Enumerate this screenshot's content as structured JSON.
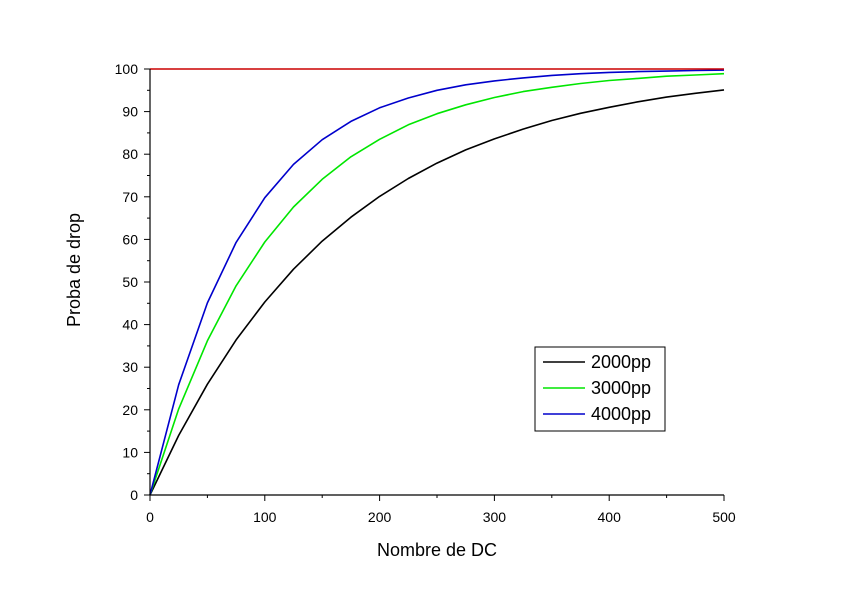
{
  "chart_data": {
    "type": "line",
    "title": "",
    "xlabel": "Nombre de DC",
    "ylabel": "Proba de drop",
    "xlim": [
      0,
      500
    ],
    "ylim": [
      0,
      100
    ],
    "x_ticks": [
      0,
      100,
      200,
      300,
      400,
      500
    ],
    "y_ticks": [
      0,
      10,
      20,
      30,
      40,
      50,
      60,
      70,
      80,
      90,
      100
    ],
    "grid": false,
    "legend_position": "lower-right",
    "x": [
      0,
      25,
      50,
      75,
      100,
      125,
      150,
      175,
      200,
      225,
      250,
      275,
      300,
      325,
      350,
      375,
      400,
      425,
      450,
      475,
      500
    ],
    "series": [
      {
        "name": "2000pp",
        "color": "#000000",
        "values": [
          0,
          14.0,
          26.0,
          36.4,
          45.3,
          53.0,
          59.6,
          65.2,
          70.1,
          74.3,
          77.9,
          81.0,
          83.6,
          85.9,
          87.9,
          89.6,
          91.0,
          92.3,
          93.4,
          94.3,
          95.1
        ]
      },
      {
        "name": "3000pp",
        "color": "#00e600",
        "values": [
          0,
          20.2,
          36.2,
          49.1,
          59.4,
          67.6,
          74.1,
          79.4,
          83.5,
          86.9,
          89.5,
          91.6,
          93.3,
          94.7,
          95.7,
          96.6,
          97.3,
          97.8,
          98.3,
          98.6,
          98.9
        ]
      },
      {
        "name": "4000pp",
        "color": "#0000cc",
        "values": [
          0,
          25.9,
          45.1,
          59.3,
          69.8,
          77.6,
          83.4,
          87.7,
          90.9,
          93.2,
          95.0,
          96.3,
          97.2,
          97.9,
          98.5,
          98.9,
          99.2,
          99.4,
          99.5,
          99.65,
          99.75
        ]
      },
      {
        "name": "",
        "color": "#cc0000",
        "values": [
          100,
          100,
          100,
          100,
          100,
          100,
          100,
          100,
          100,
          100,
          100,
          100,
          100,
          100,
          100,
          100,
          100,
          100,
          100,
          100,
          100
        ]
      }
    ]
  }
}
